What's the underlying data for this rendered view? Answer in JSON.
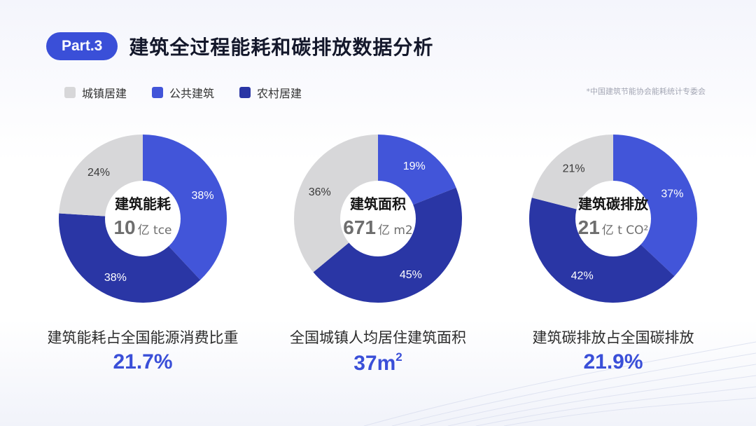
{
  "header": {
    "part_label": "Part.3",
    "title": "建筑全过程能耗和碳排放数据分析"
  },
  "legend": [
    {
      "label": "城镇居建",
      "color": "#d7d7d9"
    },
    {
      "label": "公共建筑",
      "color": "#4255d9"
    },
    {
      "label": "农村居建",
      "color": "#2a36a5"
    }
  ],
  "source_note": "*中国建筑节能协会能耗统计专委会",
  "chart_data": [
    {
      "type": "pie",
      "center_title": "建筑能耗",
      "center_value": "10",
      "center_unit": "亿 tce",
      "slices": [
        {
          "category": "公共建筑",
          "value": 38,
          "label": "38%"
        },
        {
          "category": "农村居建",
          "value": 38,
          "label": "38%"
        },
        {
          "category": "城镇居建",
          "value": 24,
          "label": "24%"
        }
      ],
      "caption": "建筑能耗占全国能源消费比重",
      "stat": "21.7%",
      "stat_sup": ""
    },
    {
      "type": "pie",
      "center_title": "建筑面积",
      "center_value": "671",
      "center_unit": "亿 m2",
      "slices": [
        {
          "category": "公共建筑",
          "value": 19,
          "label": "19%"
        },
        {
          "category": "农村居建",
          "value": 45,
          "label": "45%"
        },
        {
          "category": "城镇居建",
          "value": 36,
          "label": "36%"
        }
      ],
      "caption": "全国城镇人均居住建筑面积",
      "stat": "37m",
      "stat_sup": "2"
    },
    {
      "type": "pie",
      "center_title": "建筑碳排放",
      "center_value": "21",
      "center_unit": "亿 t CO²",
      "slices": [
        {
          "category": "公共建筑",
          "value": 37,
          "label": "37%"
        },
        {
          "category": "农村居建",
          "value": 42,
          "label": "42%"
        },
        {
          "category": "城镇居建",
          "value": 21,
          "label": "21%"
        }
      ],
      "caption": "建筑碳排放占全国碳排放",
      "stat": "21.9%",
      "stat_sup": ""
    }
  ]
}
